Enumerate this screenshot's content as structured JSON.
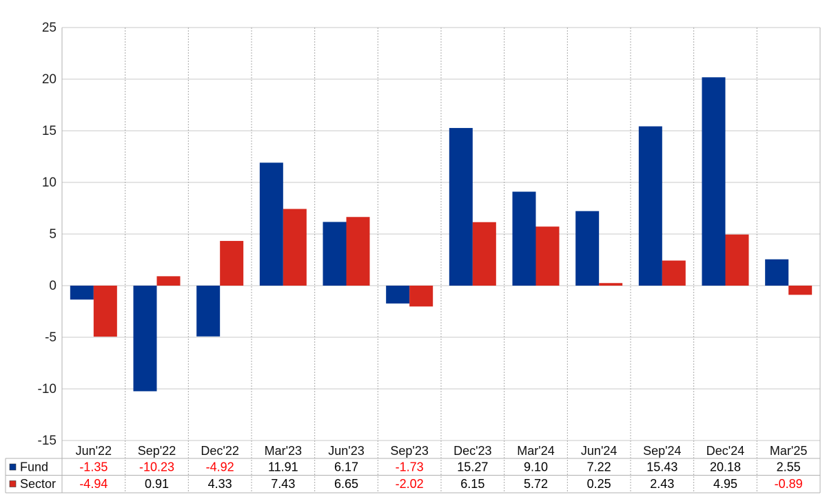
{
  "chart_data": {
    "type": "bar",
    "categories": [
      "Jun'22",
      "Sep'22",
      "Dec'22",
      "Mar'23",
      "Jun'23",
      "Sep'23",
      "Dec'23",
      "Mar'24",
      "Jun'24",
      "Sep'24",
      "Dec'24",
      "Mar'25"
    ],
    "series": [
      {
        "name": "Fund",
        "color": "#003591",
        "values": [
          -1.35,
          -10.23,
          -4.92,
          11.91,
          6.17,
          -1.73,
          15.27,
          9.1,
          7.22,
          15.43,
          20.18,
          2.55
        ],
        "labels": [
          "-1.35",
          "-10.23",
          "-4.92",
          "11.91",
          "6.17",
          "-1.73",
          "15.27",
          "9.10",
          "7.22",
          "15.43",
          "20.18",
          "2.55"
        ]
      },
      {
        "name": "Sector",
        "color": "#d7281e",
        "values": [
          -4.94,
          0.91,
          4.33,
          7.43,
          6.65,
          -2.02,
          6.15,
          5.72,
          0.25,
          2.43,
          4.95,
          -0.89
        ],
        "labels": [
          "-4.94",
          "0.91",
          "4.33",
          "7.43",
          "6.65",
          "-2.02",
          "6.15",
          "5.72",
          "0.25",
          "2.43",
          "4.95",
          "-0.89"
        ]
      }
    ],
    "ylim": [
      -15,
      25
    ],
    "yticks": [
      "-15",
      "-10",
      "-5",
      "0",
      "5",
      "10",
      "15",
      "20",
      "25"
    ],
    "grid": true,
    "legend": "table-bottom",
    "negative_value_color": "#ff0000",
    "positive_value_color": "#000000",
    "title": "",
    "xlabel": "",
    "ylabel": ""
  }
}
